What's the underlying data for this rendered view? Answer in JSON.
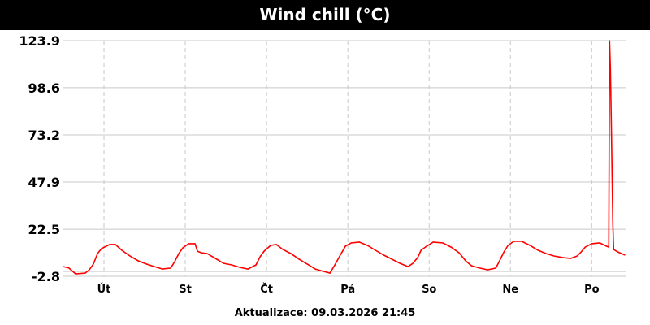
{
  "title": "Wind chill (°C)",
  "updated": "Aktualizace: 09.03.2026 21:45",
  "colors": {
    "series": "#ff0000",
    "grid": "#c8c8c8",
    "zero_line": "#808080",
    "title_bg": "#000000"
  },
  "chart_data": {
    "type": "line",
    "title": "Wind chill (°C)",
    "xlabel": "",
    "ylabel": "",
    "ylim": [
      -2.8,
      123.9
    ],
    "xlim": [
      "2026-03-03T00:00",
      "2026-03-09T22:00"
    ],
    "yticks": [
      -2.8,
      22.5,
      47.9,
      73.2,
      98.6,
      123.9
    ],
    "ytick_labels": [
      "-2.8",
      "22.5",
      "47.9",
      "73.2",
      "98.6",
      "123.9"
    ],
    "xticks": [
      {
        "at": "2026-03-03T12:00",
        "label": "Út"
      },
      {
        "at": "2026-03-04T12:00",
        "label": "St"
      },
      {
        "at": "2026-03-05T12:00",
        "label": "Čt"
      },
      {
        "at": "2026-03-06T12:00",
        "label": "Pá"
      },
      {
        "at": "2026-03-07T12:00",
        "label": "So"
      },
      {
        "at": "2026-03-08T12:00",
        "label": "Ne"
      },
      {
        "at": "2026-03-09T12:00",
        "label": "Po"
      }
    ],
    "grid": true,
    "legend": "none",
    "series": [
      {
        "color": "#ff0000",
        "points": [
          [
            "2026-03-03T00:00",
            2.4
          ],
          [
            "2026-03-03T01:40",
            1.6
          ],
          [
            "2026-03-03T03:36",
            -1.5
          ],
          [
            "2026-03-03T06:29",
            -1.1
          ],
          [
            "2026-03-03T07:41",
            0.7
          ],
          [
            "2026-03-03T08:53",
            3.8
          ],
          [
            "2026-03-03T10:05",
            9.4
          ],
          [
            "2026-03-03T11:17",
            12.1
          ],
          [
            "2026-03-03T13:41",
            14.3
          ],
          [
            "2026-03-03T15:22",
            14.3
          ],
          [
            "2026-03-03T17:17",
            11.2
          ],
          [
            "2026-03-03T19:41",
            8.1
          ],
          [
            "2026-03-03T22:05",
            5.5
          ],
          [
            "2026-03-04T00:29",
            3.8
          ],
          [
            "2026-03-04T02:53",
            2.4
          ],
          [
            "2026-03-04T05:17",
            1.1
          ],
          [
            "2026-03-04T07:41",
            1.6
          ],
          [
            "2026-03-04T08:53",
            5.1
          ],
          [
            "2026-03-04T10:05",
            9.4
          ],
          [
            "2026-03-04T11:17",
            12.5
          ],
          [
            "2026-03-04T12:58",
            14.7
          ],
          [
            "2026-03-04T14:53",
            14.7
          ],
          [
            "2026-03-04T15:36",
            10.7
          ],
          [
            "2026-03-04T16:48",
            9.8
          ],
          [
            "2026-03-04T18:29",
            9.4
          ],
          [
            "2026-03-04T20:53",
            6.8
          ],
          [
            "2026-03-04T23:17",
            4.2
          ],
          [
            "2026-03-05T01:41",
            3.3
          ],
          [
            "2026-03-05T04:05",
            2.0
          ],
          [
            "2026-03-05T06:29",
            1.1
          ],
          [
            "2026-03-05T08:53",
            3.3
          ],
          [
            "2026-03-05T10:05",
            7.7
          ],
          [
            "2026-03-05T11:17",
            10.7
          ],
          [
            "2026-03-05T13:12",
            13.8
          ],
          [
            "2026-03-05T14:53",
            14.3
          ],
          [
            "2026-03-05T16:48",
            11.6
          ],
          [
            "2026-03-05T19:12",
            9.4
          ],
          [
            "2026-03-05T21:36",
            6.4
          ],
          [
            "2026-03-06T00:00",
            3.8
          ],
          [
            "2026-03-06T02:24",
            1.1
          ],
          [
            "2026-03-06T04:48",
            -0.2
          ],
          [
            "2026-03-06T06:43",
            -1.1
          ],
          [
            "2026-03-06T08:10",
            3.3
          ],
          [
            "2026-03-06T09:36",
            8.1
          ],
          [
            "2026-03-06T11:17",
            13.4
          ],
          [
            "2026-03-06T12:58",
            15.1
          ],
          [
            "2026-03-06T15:22",
            15.6
          ],
          [
            "2026-03-06T17:46",
            13.8
          ],
          [
            "2026-03-06T20:10",
            11.2
          ],
          [
            "2026-03-06T22:34",
            8.6
          ],
          [
            "2026-03-07T00:58",
            6.4
          ],
          [
            "2026-03-07T03:22",
            4.2
          ],
          [
            "2026-03-07T05:46",
            2.4
          ],
          [
            "2026-03-07T07:12",
            4.2
          ],
          [
            "2026-03-07T08:38",
            7.3
          ],
          [
            "2026-03-07T09:36",
            11.2
          ],
          [
            "2026-03-07T11:17",
            13.4
          ],
          [
            "2026-03-07T13:12",
            15.6
          ],
          [
            "2026-03-07T16:05",
            15.1
          ],
          [
            "2026-03-07T18:29",
            12.9
          ],
          [
            "2026-03-07T20:53",
            9.8
          ],
          [
            "2026-03-07T22:48",
            5.5
          ],
          [
            "2026-03-08T00:29",
            2.9
          ],
          [
            "2026-03-08T02:53",
            1.6
          ],
          [
            "2026-03-08T05:17",
            0.7
          ],
          [
            "2026-03-08T07:41",
            1.6
          ],
          [
            "2026-03-08T08:53",
            5.9
          ],
          [
            "2026-03-08T10:05",
            10.3
          ],
          [
            "2026-03-08T11:17",
            13.8
          ],
          [
            "2026-03-08T12:58",
            16.0
          ],
          [
            "2026-03-08T15:22",
            16.0
          ],
          [
            "2026-03-08T17:46",
            13.8
          ],
          [
            "2026-03-08T20:10",
            11.2
          ],
          [
            "2026-03-08T22:34",
            9.4
          ],
          [
            "2026-03-09T00:58",
            8.1
          ],
          [
            "2026-03-09T03:22",
            7.3
          ],
          [
            "2026-03-09T05:46",
            6.8
          ],
          [
            "2026-03-09T07:41",
            8.1
          ],
          [
            "2026-03-09T08:53",
            10.3
          ],
          [
            "2026-03-09T10:05",
            12.9
          ],
          [
            "2026-03-09T12:00",
            14.7
          ],
          [
            "2026-03-09T14:24",
            15.1
          ],
          [
            "2026-03-09T16:19",
            13.4
          ],
          [
            "2026-03-09T17:02",
            12.9
          ],
          [
            "2026-03-09T17:17",
            123.9
          ],
          [
            "2026-03-09T17:31",
            108.6
          ],
          [
            "2026-03-09T17:46",
            80.2
          ],
          [
            "2026-03-09T18:00",
            54.0
          ],
          [
            "2026-03-09T18:14",
            25.2
          ],
          [
            "2026-03-09T18:29",
            11.6
          ],
          [
            "2026-03-09T19:41",
            10.3
          ],
          [
            "2026-03-09T21:45",
            8.6
          ]
        ]
      }
    ]
  }
}
